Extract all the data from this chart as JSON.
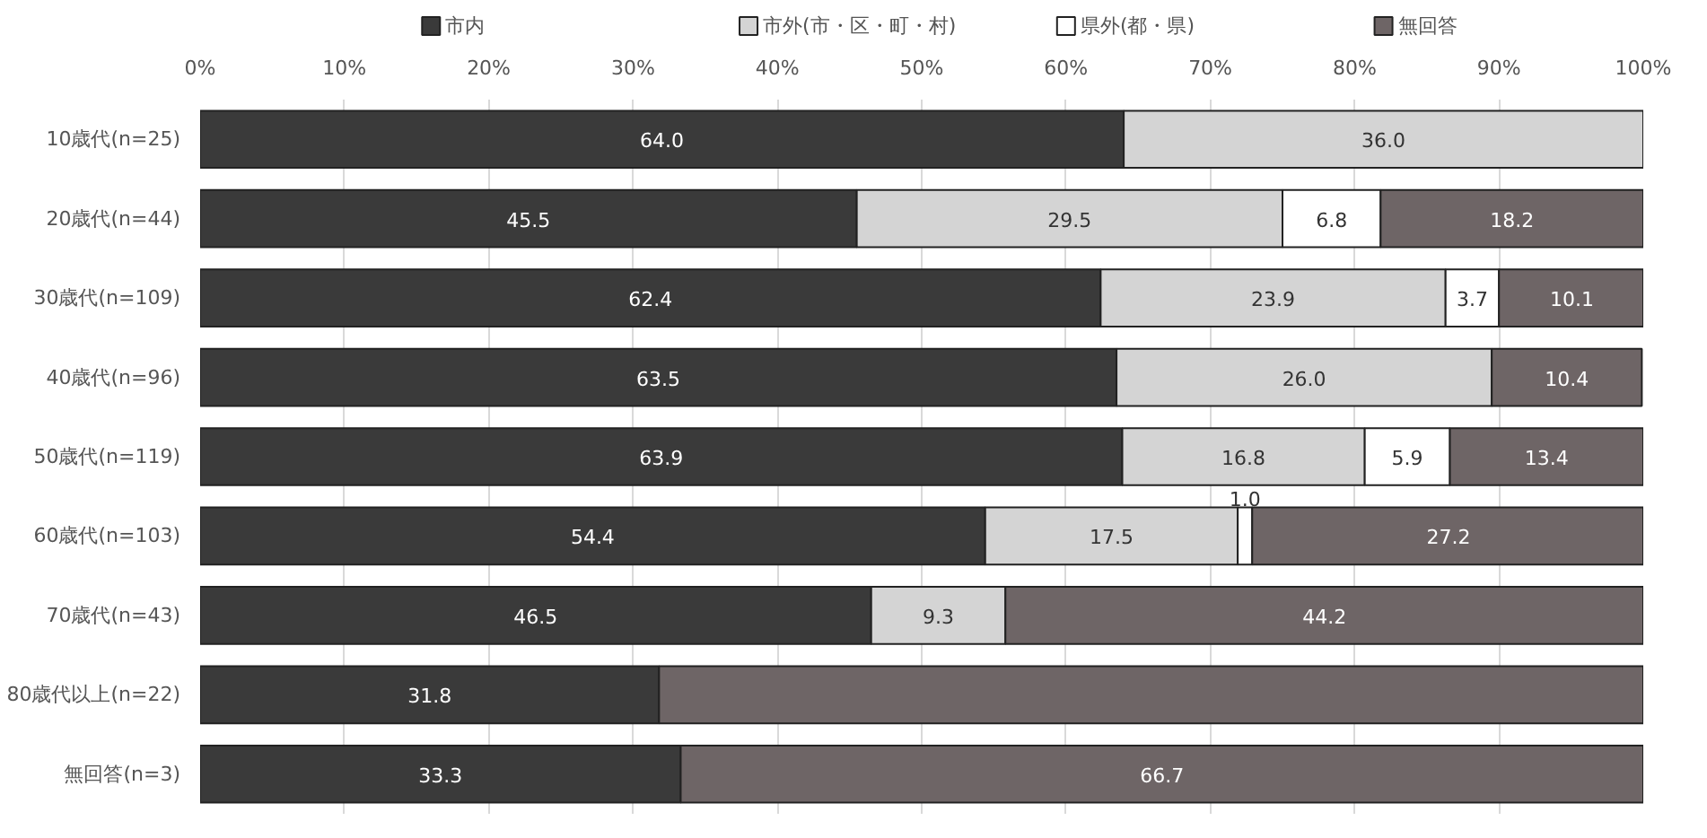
{
  "chart_data": {
    "type": "bar",
    "orientation": "horizontal",
    "stacked": true,
    "categories": [
      "10歳代(n=25)",
      "20歳代(n=44)",
      "30歳代(n=109)",
      "40歳代(n=96)",
      "50歳代(n=119)",
      "60歳代(n=103)",
      "70歳代(n=43)",
      "80歳代以上(n=22)",
      "無回答(n=3)"
    ],
    "series": [
      {
        "name": "市内",
        "color": "#3a3a3a",
        "values": [
          64.0,
          45.5,
          62.4,
          63.5,
          63.9,
          54.4,
          46.5,
          31.8,
          33.3
        ],
        "value_labels": [
          "64.0",
          "45.5",
          "62.4",
          "63.5",
          "63.9",
          "54.4",
          "46.5",
          "31.8",
          "33.3"
        ]
      },
      {
        "name": "市外(市・区・町・村)",
        "color": "#d4d4d4",
        "values": [
          36.0,
          29.5,
          23.9,
          26.0,
          16.8,
          17.5,
          9.3,
          null,
          null
        ],
        "value_labels": [
          "36.0",
          "29.5",
          "23.9",
          "26.0",
          "16.8",
          "17.5",
          "9.3",
          null,
          null
        ]
      },
      {
        "name": "県外(都・県)",
        "color": "#ffffff",
        "values": [
          null,
          6.8,
          3.7,
          null,
          5.9,
          1.0,
          null,
          null,
          null
        ],
        "value_labels": [
          null,
          "6.8",
          "3.7",
          null,
          "5.9",
          "1.0",
          null,
          null,
          null
        ]
      },
      {
        "name": "無回答",
        "color": "#6e6566",
        "values": [
          null,
          18.2,
          10.1,
          10.4,
          13.4,
          27.2,
          44.2,
          68.2,
          66.7
        ],
        "value_labels": [
          null,
          "18.2",
          "10.1",
          "10.4",
          "13.4",
          "27.2",
          "44.2",
          null,
          "66.7"
        ]
      }
    ],
    "xlim": [
      0,
      100
    ],
    "xticks": [
      {
        "value": 0,
        "label": "0%"
      },
      {
        "value": 10,
        "label": "10%"
      },
      {
        "value": 20,
        "label": "20%"
      },
      {
        "value": 30,
        "label": "30%"
      },
      {
        "value": 40,
        "label": "40%"
      },
      {
        "value": 50,
        "label": "50%"
      },
      {
        "value": 60,
        "label": "60%"
      },
      {
        "value": 70,
        "label": "70%"
      },
      {
        "value": 80,
        "label": "80%"
      },
      {
        "value": 90,
        "label": "90%"
      },
      {
        "value": 100,
        "label": "100%"
      }
    ],
    "grid": "x",
    "legend": "top"
  }
}
